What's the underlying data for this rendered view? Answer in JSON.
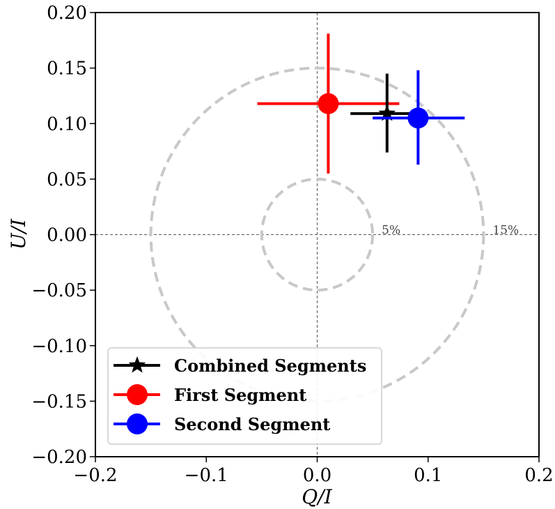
{
  "chart_data": {
    "type": "scatter",
    "xlabel": "Q/I",
    "ylabel": "U/I",
    "xlim": [
      -0.2,
      0.2
    ],
    "ylim": [
      -0.2,
      0.2
    ],
    "x_ticks": [
      "−0.2",
      "−0.1",
      "0.0",
      "0.1",
      "0.2"
    ],
    "x_tick_values": [
      -0.2,
      -0.1,
      0.0,
      0.1,
      0.2
    ],
    "y_ticks": [
      "−0.20",
      "−0.15",
      "−0.10",
      "−0.05",
      "0.00",
      "0.05",
      "0.10",
      "0.15",
      "0.20"
    ],
    "y_tick_values": [
      -0.2,
      -0.15,
      -0.1,
      -0.05,
      0.0,
      0.05,
      0.1,
      0.15,
      0.2
    ],
    "grid": false,
    "reference_lines": {
      "x": 0,
      "y": 0,
      "style": "dashed"
    },
    "rings": [
      {
        "radius": 0.05,
        "label": "5%"
      },
      {
        "radius": 0.15,
        "label": "15%"
      }
    ],
    "legend_position": "lower-left",
    "series": [
      {
        "name": "Combined Segments",
        "marker": "star",
        "color": "#000000",
        "x": 0.063,
        "y": 0.109,
        "x_err_low": 0.033,
        "x_err_high": 0.025,
        "y_err_low": 0.035,
        "y_err_high": 0.036
      },
      {
        "name": "First Segment",
        "marker": "circle",
        "color": "#ff0000",
        "x": 0.01,
        "y": 0.118,
        "x_err_low": 0.064,
        "x_err_high": 0.064,
        "y_err_low": 0.063,
        "y_err_high": 0.063
      },
      {
        "name": "Second Segment",
        "marker": "circle",
        "color": "#0000ff",
        "x": 0.091,
        "y": 0.105,
        "x_err_low": 0.041,
        "x_err_high": 0.042,
        "y_err_low": 0.042,
        "y_err_high": 0.043
      }
    ]
  }
}
